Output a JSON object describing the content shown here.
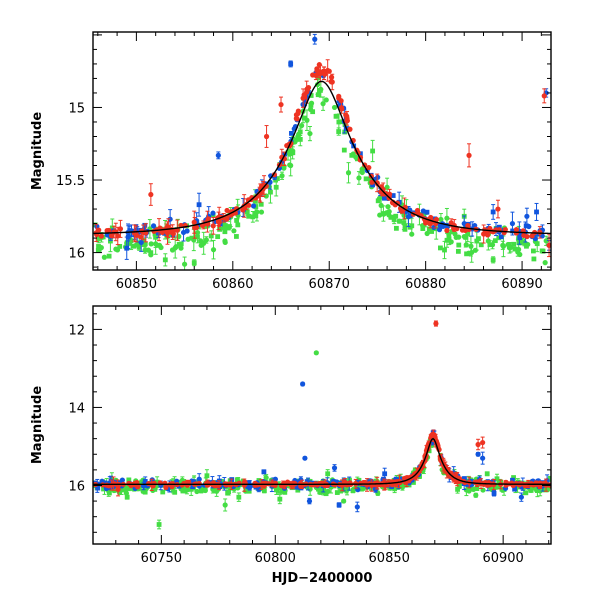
{
  "colors": {
    "red": "#ee3322",
    "blue": "#1155dd",
    "green": "#44dd44",
    "model": "#000000"
  },
  "chart_data": [
    {
      "type": "scatter",
      "panel": "top",
      "xlabel": "",
      "ylabel": "Magnitude",
      "xlim": [
        60845.5,
        60893
      ],
      "ylim": [
        16.12,
        14.48
      ],
      "y_inverted": true,
      "x_ticks": [
        60850,
        60860,
        60870,
        60880,
        60890
      ],
      "x_tick_labels": [
        "60850",
        "60860",
        "60870",
        "60880",
        "60890"
      ],
      "y_ticks": [
        15,
        15.5,
        16
      ],
      "y_tick_labels": [
        "15",
        "15.5",
        "16"
      ],
      "model_curve": {
        "baseline": 15.88,
        "peak_time": 60869.2,
        "peak_mag": 14.82,
        "u0": 0.3,
        "tE": 7.5
      },
      "series": [
        {
          "color": "green",
          "scatter": 0.09,
          "outliers": [
            [
              60847.5,
              15.83
            ],
            [
              60852,
              15.94
            ],
            [
              60853,
              16.05
            ],
            [
              60855,
              16.08
            ],
            [
              60856,
              16.07
            ],
            [
              60858,
              15.98
            ],
            [
              60859.5,
              15.75
            ],
            [
              60860.5,
              15.7
            ],
            [
              60861.5,
              15.72
            ],
            [
              60862.5,
              15.72
            ],
            [
              60864.5,
              15.55
            ],
            [
              60866,
              15.4
            ],
            [
              60867,
              15.22
            ],
            [
              60868,
              15.18
            ],
            [
              60871,
              15.1
            ],
            [
              60872,
              15.45
            ],
            [
              60874.5,
              15.3
            ],
            [
              60876,
              15.55
            ],
            [
              60878,
              15.7
            ],
            [
              60880,
              15.78
            ],
            [
              60884,
              15.75
            ],
            [
              60886.5,
              15.92
            ],
            [
              60887,
              16.05
            ],
            [
              60888,
              15.95
            ]
          ]
        },
        {
          "color": "blue",
          "scatter": 0.04,
          "outliers": [
            [
              60849,
              15.97
            ],
            [
              60850.5,
              15.93
            ],
            [
              60853.5,
              15.77
            ],
            [
              60856.5,
              15.67
            ],
            [
              60857.5,
              15.75
            ],
            [
              60858.5,
              15.33
            ],
            [
              60866,
              14.7
            ],
            [
              60868.5,
              14.53
            ],
            [
              60884,
              15.8
            ],
            [
              60887,
              15.72
            ],
            [
              60889,
              15.8
            ],
            [
              60890.5,
              15.75
            ],
            [
              60891.5,
              15.72
            ],
            [
              60892.5,
              14.9
            ],
            [
              60892.8,
              15.95
            ]
          ]
        },
        {
          "color": "red",
          "scatter": 0.03,
          "outliers": [
            [
              60851.5,
              15.6
            ],
            [
              60863.5,
              15.2
            ],
            [
              60865,
              14.98
            ],
            [
              60884.5,
              15.33
            ],
            [
              60887.5,
              15.7
            ],
            [
              60892.3,
              14.92
            ],
            [
              60892.8,
              15.95
            ]
          ]
        }
      ]
    },
    {
      "type": "scatter",
      "panel": "bottom",
      "xlabel": "HJD−2400000",
      "ylabel": "Magnitude",
      "xlim": [
        60720,
        60921
      ],
      "ylim": [
        17.5,
        11.4
      ],
      "y_inverted": true,
      "x_ticks": [
        60750,
        60800,
        60850,
        60900
      ],
      "x_tick_labels": [
        "60750",
        "60800",
        "60850",
        "60900"
      ],
      "y_ticks": [
        12,
        14,
        16
      ],
      "y_tick_labels": [
        "12",
        "14",
        "16"
      ],
      "model_curve": {
        "baseline": 15.97,
        "peak_time": 60869.2,
        "peak_mag": 14.8,
        "u0": 0.3,
        "tE": 7.5
      },
      "series": [
        {
          "color": "green",
          "scatter": 0.15,
          "outliers": [
            [
              60735,
              16.3
            ],
            [
              60742,
              16.15
            ],
            [
              60749,
              17.0
            ],
            [
              60760,
              15.9
            ],
            [
              60770,
              15.75
            ],
            [
              60778,
              16.5
            ],
            [
              60784,
              16.3
            ],
            [
              60796,
              15.8
            ],
            [
              60802,
              16.35
            ],
            [
              60818,
              12.6
            ],
            [
              60823,
              15.7
            ],
            [
              60830,
              16.4
            ],
            [
              60836,
              15.9
            ],
            [
              60845,
              16.2
            ],
            [
              60880,
              16.1
            ],
            [
              60888,
              16.25
            ],
            [
              60893,
              15.7
            ]
          ]
        },
        {
          "color": "blue",
          "scatter": 0.1,
          "outliers": [
            [
              60795,
              15.65
            ],
            [
              60812,
              13.4
            ],
            [
              60813,
              15.3
            ],
            [
              60814,
              15.9
            ],
            [
              60815,
              16.4
            ],
            [
              60826,
              15.55
            ],
            [
              60828,
              16.5
            ],
            [
              60836,
              16.55
            ],
            [
              60844,
              16.1
            ],
            [
              60848,
              15.7
            ],
            [
              60889,
              15.2
            ],
            [
              60891,
              15.3
            ],
            [
              60896,
              16.2
            ],
            [
              60908,
              16.3
            ]
          ]
        },
        {
          "color": "red",
          "scatter": 0.04,
          "outliers": [
            [
              60731,
              16.1
            ],
            [
              60752,
              16.05
            ],
            [
              60870.5,
              11.85
            ],
            [
              60889,
              14.95
            ],
            [
              60891,
              14.9
            ]
          ]
        }
      ]
    }
  ]
}
